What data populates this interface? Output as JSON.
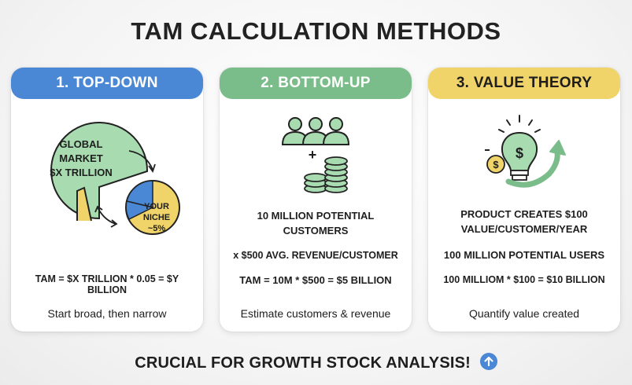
{
  "title": "TAM CALCULATION METHODS",
  "cards": [
    {
      "header": "1. TOP-DOWN",
      "color": "#4a87d4",
      "big_circle_text": [
        "GLOBAL",
        "MARKET",
        "$X TRILLION"
      ],
      "small_circle_text": [
        "YOUR",
        "NICHE",
        "~5%"
      ],
      "formula": "TAM = $X TRILLION * 0.05 = $Y BILLION",
      "tagline": "Start broad, then narrow"
    },
    {
      "header": "2. BOTTOM-UP",
      "color": "#7bbd8a",
      "plus": "+",
      "line1": "10 MILLION POTENTIAL",
      "line2": "CUSTOMERS",
      "line3": "x $500 AVG. REVENUE/CUSTOMER",
      "formula": "TAM = 10M * $500 = $5 BILLION",
      "tagline": "Estimate customers & revenue"
    },
    {
      "header": "3. VALUE THEORY",
      "color": "#f0d46a",
      "bulb_symbol": "$",
      "coin_symbol": "$",
      "line1": "PRODUCT CREATES $100",
      "line2": "VALUE/CUSTOMER/YEAR",
      "line3": "100 MILLION POTENTIAL USERS",
      "formula": "100 MILLIOM * $100 = $10 BILLION",
      "tagline": "Quantify value created"
    }
  ],
  "footer": "CRUCIAL FOR GROWTH STOCK ANALYSIS!",
  "icons": {
    "card1": [
      "pie-chart-icon",
      "arrow-icon"
    ],
    "card2": [
      "people-icon",
      "coin-stack-icon"
    ],
    "card3": [
      "lightbulb-icon",
      "coin-icon",
      "growth-arrow-icon"
    ],
    "footer": "arrow-up-icon"
  }
}
